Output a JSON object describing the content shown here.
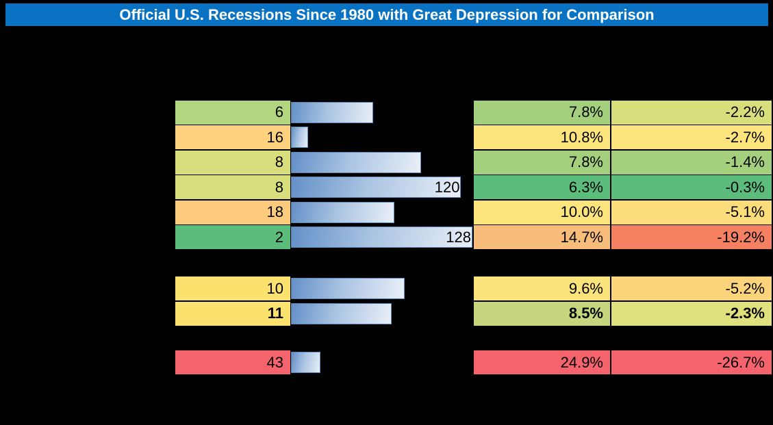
{
  "title": "Official U.S. Recessions Since 1980 with Great Depression for Comparison",
  "colors": {
    "page_bg": "#000000",
    "title_bar_bg": "#0a72c2",
    "title_text": "#ffffff",
    "bar_fill_left": "#6490c8",
    "bar_fill_mid": "#aac4e2",
    "bar_fill_right": "#e9eff8",
    "bar_border": "#5d87b8",
    "cell_border": "#000000"
  },
  "chart_data": {
    "type": "table",
    "title": "Official U.S. Recessions Since 1980 with Great Depression for Comparison",
    "bar_axis_max": 128,
    "visible_bar_labels": [
      "120",
      "128"
    ],
    "groups": [
      {
        "rows": [
          {
            "months": "6",
            "months_bg": "#b2d57f",
            "bar_value": 58,
            "bar_label": "",
            "pct_a": "7.8%",
            "pct_a_bg": "#a4d07d",
            "pct_b": "-2.2%",
            "pct_b_bg": "#d9de7d",
            "bold": false
          },
          {
            "months": "16",
            "months_bg": "#fdd17d",
            "bar_value": 12,
            "bar_label": "",
            "pct_a": "10.8%",
            "pct_a_bg": "#fde47d",
            "pct_b": "-2.7%",
            "pct_b_bg": "#fde47d",
            "bold": false
          },
          {
            "months": "8",
            "months_bg": "#d9de7d",
            "bar_value": 92,
            "bar_label": "",
            "pct_a": "7.8%",
            "pct_a_bg": "#a4d07d",
            "pct_b": "-1.4%",
            "pct_b_bg": "#a4d07d",
            "bold": false
          },
          {
            "months": "8",
            "months_bg": "#d9de7d",
            "bar_value": 120,
            "bar_label": "120",
            "pct_a": "6.3%",
            "pct_a_bg": "#5cbc7c",
            "pct_b": "-0.3%",
            "pct_b_bg": "#5cbc7c",
            "bold": false
          },
          {
            "months": "18",
            "months_bg": "#fcca7c",
            "bar_value": 73,
            "bar_label": "",
            "pct_a": "10.0%",
            "pct_a_bg": "#fde47d",
            "pct_b": "-5.1%",
            "pct_b_bg": "#fbdd7b",
            "bold": false
          },
          {
            "months": "2",
            "months_bg": "#5cbc7c",
            "bar_value": 128,
            "bar_label": "128",
            "pct_a": "14.7%",
            "pct_a_bg": "#f9bd7b",
            "pct_b": "-19.2%",
            "pct_b_bg": "#f58162",
            "bold": false
          }
        ]
      },
      {
        "rows": [
          {
            "months": "10",
            "months_bg": "#fbe16e",
            "bar_value": 80,
            "bar_label": "",
            "pct_a": "9.6%",
            "pct_a_bg": "#fbe37b",
            "pct_b": "-5.2%",
            "pct_b_bg": "#fbd47b",
            "bold": false
          },
          {
            "months": "11",
            "months_bg": "#fbe16e",
            "bar_value": 71,
            "bar_label": "",
            "pct_a": "8.5%",
            "pct_a_bg": "#c6d67f",
            "pct_b": "-2.3%",
            "pct_b_bg": "#dfe17e",
            "bold": true
          }
        ]
      },
      {
        "rows": [
          {
            "months": "43",
            "months_bg": "#f5646c",
            "bar_value": 21,
            "bar_label": "",
            "pct_a": "24.9%",
            "pct_a_bg": "#f5646c",
            "pct_b": "-26.7%",
            "pct_b_bg": "#f5646c",
            "bold": false
          }
        ]
      }
    ]
  }
}
